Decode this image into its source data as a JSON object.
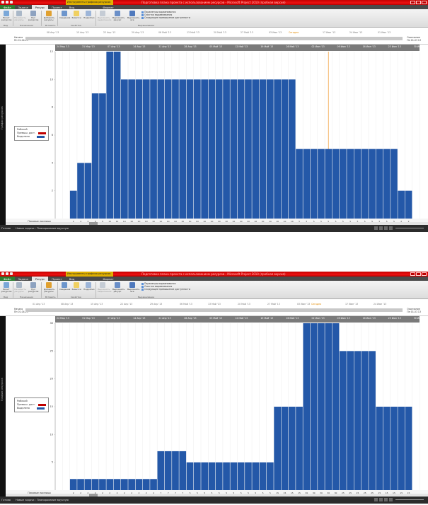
{
  "app": {
    "title": "Подготовка плана проекта с использованием ресурсов - Microsoft Project 2010 (пробная версия)",
    "context_tab": "Инструменты графика ресурсов",
    "tabs": [
      "Файл",
      "Задача",
      "Ресурс",
      "Проект",
      "Вид",
      "Формат"
    ],
    "active_tab": "Ресурс"
  },
  "ribbon": {
    "groups": [
      {
        "label": "Вид",
        "buttons": [
          "Визит ресурсов"
        ]
      },
      {
        "label": "Назначения",
        "buttons": [
          "Назначить ресурсы",
          "Пул ресурсов"
        ]
      },
      {
        "label": "Вставить",
        "buttons": [
          "Добавить ресурсы"
        ]
      },
      {
        "label": "Свойства",
        "buttons": [
          "Сведения",
          "Заметки",
          "Подробно"
        ]
      },
      {
        "label": "Выравнивание",
        "buttons": [
          "Выровнять выделенное",
          "Выровнять ресурс",
          "Выровнять все"
        ]
      }
    ],
    "leveling_options": [
      "Параметры выравнивания",
      "Очистка выравнивания",
      "Следующее превышение доступности"
    ]
  },
  "timeline": {
    "start_label": "Начало",
    "start_date": "Пн 01.04.13",
    "end_label": "Окончание",
    "end_date": "Пн 01.07.13",
    "today_label": "Сегодня",
    "dates": [
      "01 Апр '13",
      "08 Апр '13",
      "15 Апр '13",
      "22 Апр '13",
      "29 Апр '13",
      "06 Май '13",
      "13 Май '13",
      "20 Май '13",
      "27 Май '13",
      "03 Июн '13",
      "10 Июн '13",
      "17 Июн '13",
      "24 Июн '13",
      "01 Июл '13"
    ]
  },
  "side_label": "График ресурсов",
  "legend": {
    "title": "Рабочий",
    "items": [
      {
        "label": "Превыш. дост.",
        "color": "#c00000"
      },
      {
        "label": "Выделено",
        "color": "#2458a8"
      }
    ]
  },
  "footer_label": "Пиковые единицы",
  "status": {
    "ready": "Готово",
    "new_tasks": "Новые задачи : Планирование вручную"
  },
  "colors": {
    "bar": "#2458a8",
    "overalloc": "#c00000",
    "today_line": "#f0a040"
  },
  "chart_data": [
    {
      "type": "bar",
      "resource": "Рабочий",
      "week_labels": [
        "24 Мар '13",
        "31 Мар '13",
        "07 Апр '13",
        "14 Апр '13",
        "21 Апр '13",
        "28 Апр '13",
        "05 Май '13",
        "12 Май '13",
        "19 Май '13",
        "26 Май '13",
        "02 Июн '13",
        "09 Июн '13",
        "16 Июн '13",
        "23 Июн '13",
        "30 Июн '13",
        "07 Июл '13"
      ],
      "y_ticks": [
        2,
        4,
        6,
        8,
        10,
        12
      ],
      "ylim": [
        0,
        12
      ],
      "values": [
        0,
        0,
        2,
        4,
        4,
        9,
        9,
        12,
        12,
        10,
        10,
        10,
        10,
        10,
        10,
        10,
        10,
        10,
        10,
        10,
        10,
        10,
        10,
        10,
        10,
        10,
        10,
        10,
        10,
        10,
        10,
        10,
        10,
        5,
        5,
        5,
        5,
        5,
        5,
        5,
        5,
        5,
        5,
        5,
        5,
        5,
        5,
        2,
        2,
        0
      ]
    },
    {
      "type": "bar",
      "resource": "Рабочий",
      "week_labels": [
        "24 Мар '13",
        "31 Мар '13",
        "07 Апр '13",
        "14 Апр '13",
        "21 Апр '13",
        "28 Апр '13",
        "05 Май '13",
        "12 Май '13",
        "19 Май '13",
        "26 Май '13",
        "02 Июн '13",
        "09 Июн '13",
        "16 Июн '13",
        "23 Июн '13",
        "30 Июн '13",
        "07 Июл '13"
      ],
      "y_ticks": [
        5,
        10,
        15,
        20,
        25,
        30
      ],
      "ylim": [
        0,
        30
      ],
      "values": [
        0,
        0,
        2,
        2,
        2,
        2,
        2,
        2,
        2,
        2,
        2,
        2,
        2,
        2,
        7,
        7,
        7,
        7,
        5,
        5,
        5,
        5,
        5,
        5,
        5,
        5,
        5,
        5,
        5,
        5,
        15,
        15,
        15,
        15,
        30,
        30,
        30,
        30,
        30,
        25,
        25,
        25,
        25,
        25,
        15,
        15,
        15,
        15,
        15,
        0
      ]
    }
  ]
}
